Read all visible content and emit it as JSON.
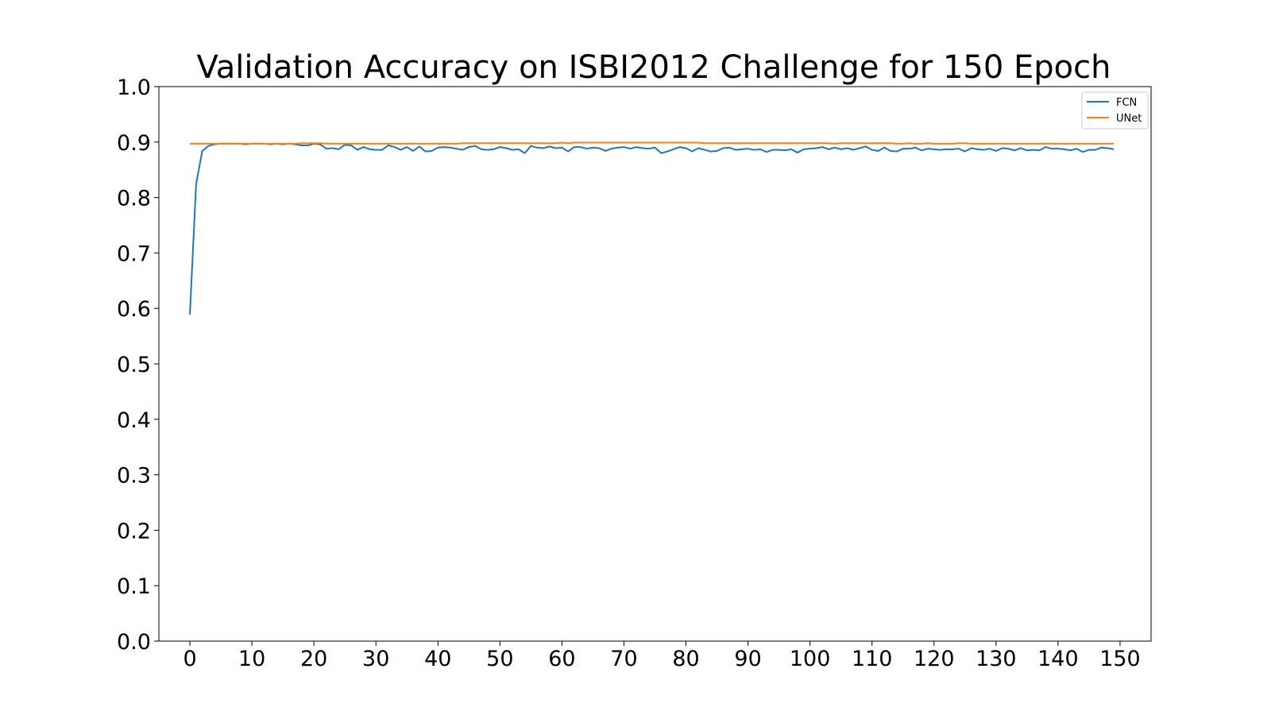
{
  "chart_data": {
    "type": "line",
    "title": "Validation Accuracy on ISBI2012 Challenge for 150 Epoch",
    "xlabel": "",
    "ylabel": "",
    "xlim": [
      -5,
      155
    ],
    "ylim": [
      0,
      1.0
    ],
    "xticks": [
      0,
      10,
      20,
      30,
      40,
      50,
      60,
      70,
      80,
      90,
      100,
      110,
      120,
      130,
      140,
      150
    ],
    "xtick_labels": [
      "0",
      "10",
      "20",
      "30",
      "40",
      "50",
      "60",
      "70",
      "80",
      "90",
      "100",
      "110",
      "120",
      "130",
      "140",
      "150"
    ],
    "yticks": [
      0.0,
      0.1,
      0.2,
      0.3,
      0.4,
      0.5,
      0.6,
      0.7,
      0.8,
      0.9,
      1.0
    ],
    "ytick_labels": [
      "0.0",
      "0.1",
      "0.2",
      "0.3",
      "0.4",
      "0.5",
      "0.6",
      "0.7",
      "0.8",
      "0.9",
      "1.0"
    ],
    "grid": false,
    "legend_position": "top-right",
    "x": [
      0,
      1,
      2,
      3,
      4,
      5,
      6,
      7,
      8,
      9,
      10,
      11,
      12,
      13,
      14,
      15,
      16,
      17,
      18,
      19,
      20,
      21,
      22,
      23,
      24,
      25,
      26,
      27,
      28,
      29,
      30,
      31,
      32,
      33,
      34,
      35,
      36,
      37,
      38,
      39,
      40,
      41,
      42,
      43,
      44,
      45,
      46,
      47,
      48,
      49,
      50,
      51,
      52,
      53,
      54,
      55,
      56,
      57,
      58,
      59,
      60,
      61,
      62,
      63,
      64,
      65,
      66,
      67,
      68,
      69,
      70,
      71,
      72,
      73,
      74,
      75,
      76,
      77,
      78,
      79,
      80,
      81,
      82,
      83,
      84,
      85,
      86,
      87,
      88,
      89,
      90,
      91,
      92,
      93,
      94,
      95,
      96,
      97,
      98,
      99,
      100,
      101,
      102,
      103,
      104,
      105,
      106,
      107,
      108,
      109,
      110,
      111,
      112,
      113,
      114,
      115,
      116,
      117,
      118,
      119,
      120,
      121,
      122,
      123,
      124,
      125,
      126,
      127,
      128,
      129,
      130,
      131,
      132,
      133,
      134,
      135,
      136,
      137,
      138,
      139,
      140,
      141,
      142,
      143,
      144,
      145,
      146,
      147,
      148,
      149
    ],
    "series": [
      {
        "name": "FCN",
        "color": "#1f77b4",
        "values": [
          0.589,
          0.824,
          0.884,
          0.893,
          0.896,
          0.897,
          0.897,
          0.897,
          0.897,
          0.896,
          0.897,
          0.897,
          0.897,
          0.896,
          0.897,
          0.896,
          0.897,
          0.896,
          0.894,
          0.894,
          0.897,
          0.896,
          0.888,
          0.889,
          0.887,
          0.895,
          0.894,
          0.886,
          0.891,
          0.887,
          0.886,
          0.886,
          0.894,
          0.891,
          0.886,
          0.891,
          0.884,
          0.892,
          0.883,
          0.884,
          0.89,
          0.891,
          0.89,
          0.888,
          0.886,
          0.891,
          0.893,
          0.887,
          0.886,
          0.887,
          0.891,
          0.889,
          0.886,
          0.887,
          0.88,
          0.893,
          0.89,
          0.889,
          0.892,
          0.889,
          0.89,
          0.883,
          0.891,
          0.891,
          0.888,
          0.89,
          0.889,
          0.884,
          0.888,
          0.89,
          0.891,
          0.888,
          0.891,
          0.889,
          0.888,
          0.89,
          0.88,
          0.883,
          0.887,
          0.891,
          0.889,
          0.883,
          0.889,
          0.886,
          0.883,
          0.884,
          0.889,
          0.89,
          0.886,
          0.887,
          0.888,
          0.886,
          0.887,
          0.882,
          0.886,
          0.886,
          0.885,
          0.887,
          0.881,
          0.887,
          0.888,
          0.889,
          0.891,
          0.887,
          0.89,
          0.887,
          0.889,
          0.886,
          0.889,
          0.892,
          0.886,
          0.884,
          0.89,
          0.884,
          0.883,
          0.888,
          0.888,
          0.89,
          0.885,
          0.888,
          0.887,
          0.886,
          0.887,
          0.887,
          0.888,
          0.883,
          0.889,
          0.887,
          0.886,
          0.888,
          0.884,
          0.889,
          0.888,
          0.885,
          0.889,
          0.885,
          0.886,
          0.885,
          0.891,
          0.888,
          0.888,
          0.887,
          0.885,
          0.888,
          0.882,
          0.886,
          0.886,
          0.89,
          0.889,
          0.887
        ]
      },
      {
        "name": "UNet",
        "color": "#ff7f0e",
        "values": [
          0.897,
          0.897,
          0.897,
          0.897,
          0.897,
          0.897,
          0.897,
          0.897,
          0.897,
          0.897,
          0.897,
          0.897,
          0.897,
          0.897,
          0.897,
          0.897,
          0.897,
          0.897,
          0.898,
          0.898,
          0.898,
          0.898,
          0.897,
          0.897,
          0.897,
          0.897,
          0.897,
          0.897,
          0.897,
          0.897,
          0.897,
          0.897,
          0.897,
          0.897,
          0.897,
          0.897,
          0.897,
          0.897,
          0.897,
          0.897,
          0.897,
          0.897,
          0.897,
          0.897,
          0.898,
          0.898,
          0.898,
          0.898,
          0.898,
          0.898,
          0.898,
          0.898,
          0.898,
          0.898,
          0.898,
          0.898,
          0.898,
          0.898,
          0.898,
          0.898,
          0.899,
          0.898,
          0.899,
          0.899,
          0.899,
          0.899,
          0.899,
          0.899,
          0.899,
          0.899,
          0.899,
          0.899,
          0.899,
          0.899,
          0.899,
          0.899,
          0.899,
          0.899,
          0.899,
          0.899,
          0.899,
          0.899,
          0.899,
          0.898,
          0.898,
          0.898,
          0.898,
          0.898,
          0.898,
          0.898,
          0.898,
          0.898,
          0.898,
          0.898,
          0.898,
          0.898,
          0.898,
          0.898,
          0.898,
          0.898,
          0.898,
          0.898,
          0.898,
          0.898,
          0.897,
          0.898,
          0.898,
          0.898,
          0.898,
          0.898,
          0.898,
          0.898,
          0.898,
          0.898,
          0.897,
          0.897,
          0.898,
          0.897,
          0.897,
          0.898,
          0.897,
          0.897,
          0.897,
          0.897,
          0.898,
          0.898,
          0.897,
          0.897,
          0.897,
          0.897,
          0.897,
          0.897,
          0.897,
          0.897,
          0.897,
          0.897,
          0.897,
          0.897,
          0.897,
          0.897,
          0.897,
          0.897,
          0.897,
          0.897,
          0.897,
          0.897,
          0.897,
          0.897,
          0.897,
          0.897
        ]
      }
    ]
  }
}
